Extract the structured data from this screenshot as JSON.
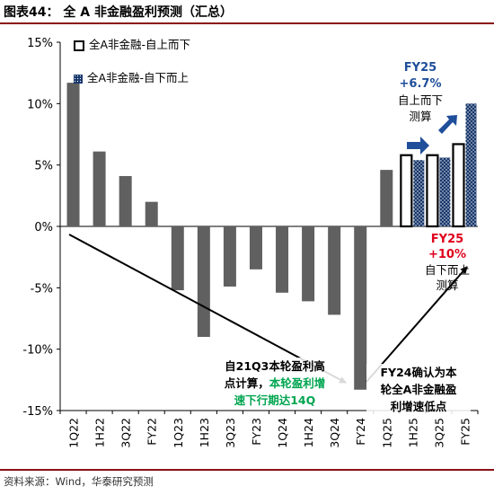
{
  "figure_title": "图表44： 全 A 非金融盈利预测（汇总）",
  "source": "资料来源：Wind，华泰研究预测",
  "colors": {
    "bar_history": "#606060",
    "bar_topdown_fill": "#ffffff",
    "bar_bottomup": "#17376b",
    "ann_blue": "#1f4e9a",
    "ann_red": "#e0001b",
    "ann_green": "#00a550",
    "arrow_fill": "#1f4e9a",
    "rule": "#8a0f18"
  },
  "legend": [
    {
      "label": "全A非金融-自上而下",
      "style": "hollow"
    },
    {
      "label": "全A非金融-自下而上",
      "style": "dotted"
    }
  ],
  "annotations": {
    "fy25_top_line1": "FY25",
    "fy25_top_line2": "+6.7%",
    "fy25_top_line3": "自上而下",
    "fy25_top_line4": "测算",
    "fy25_bot_line1": "FY25",
    "fy25_bot_line2": "+10%",
    "fy25_bot_line3": "自下而上",
    "fy25_bot_line4": "测算",
    "left_line1": "自21Q3本轮盈利高",
    "left_line2_black": "点计算，",
    "left_line2_green": "本轮盈利增",
    "left_line3": "速下行期达14Q",
    "right_line1": "FY24确认为本",
    "right_line2": "轮全A非金融盈",
    "right_line3": "利增速低点"
  },
  "chart_data": {
    "type": "bar",
    "title": "全 A 非金融盈利预测（汇总）",
    "categories": [
      "1Q22",
      "1H22",
      "3Q22",
      "FY22",
      "1Q23",
      "1H23",
      "3Q23",
      "FY23",
      "1Q24",
      "1H24",
      "3Q24",
      "FY24",
      "1Q25",
      "1H25",
      "3Q25",
      "FY25"
    ],
    "ylim": [
      -15,
      15
    ],
    "yticks": [
      -15,
      -10,
      -5,
      0,
      5,
      10,
      15
    ],
    "ytick_labels": [
      "-15%",
      "-10%",
      "-5%",
      "0%",
      "5%",
      "10%",
      "15%"
    ],
    "series": [
      {
        "name": "",
        "values": [
          11.7,
          6.1,
          4.1,
          2.0,
          -5.2,
          -9.0,
          -4.9,
          -3.5,
          -5.4,
          -6.1,
          -7.2,
          -13.3,
          4.6,
          null,
          null,
          null
        ]
      },
      {
        "name": "全A非金融-自上而下",
        "values": [
          null,
          null,
          null,
          null,
          null,
          null,
          null,
          null,
          null,
          null,
          null,
          null,
          null,
          5.8,
          5.8,
          6.7
        ]
      },
      {
        "name": "全A非金融-自下而上",
        "values": [
          null,
          null,
          null,
          null,
          null,
          null,
          null,
          null,
          null,
          null,
          null,
          null,
          null,
          5.4,
          5.6,
          10.0
        ]
      }
    ],
    "grid": false,
    "legend_position": "top-left"
  }
}
